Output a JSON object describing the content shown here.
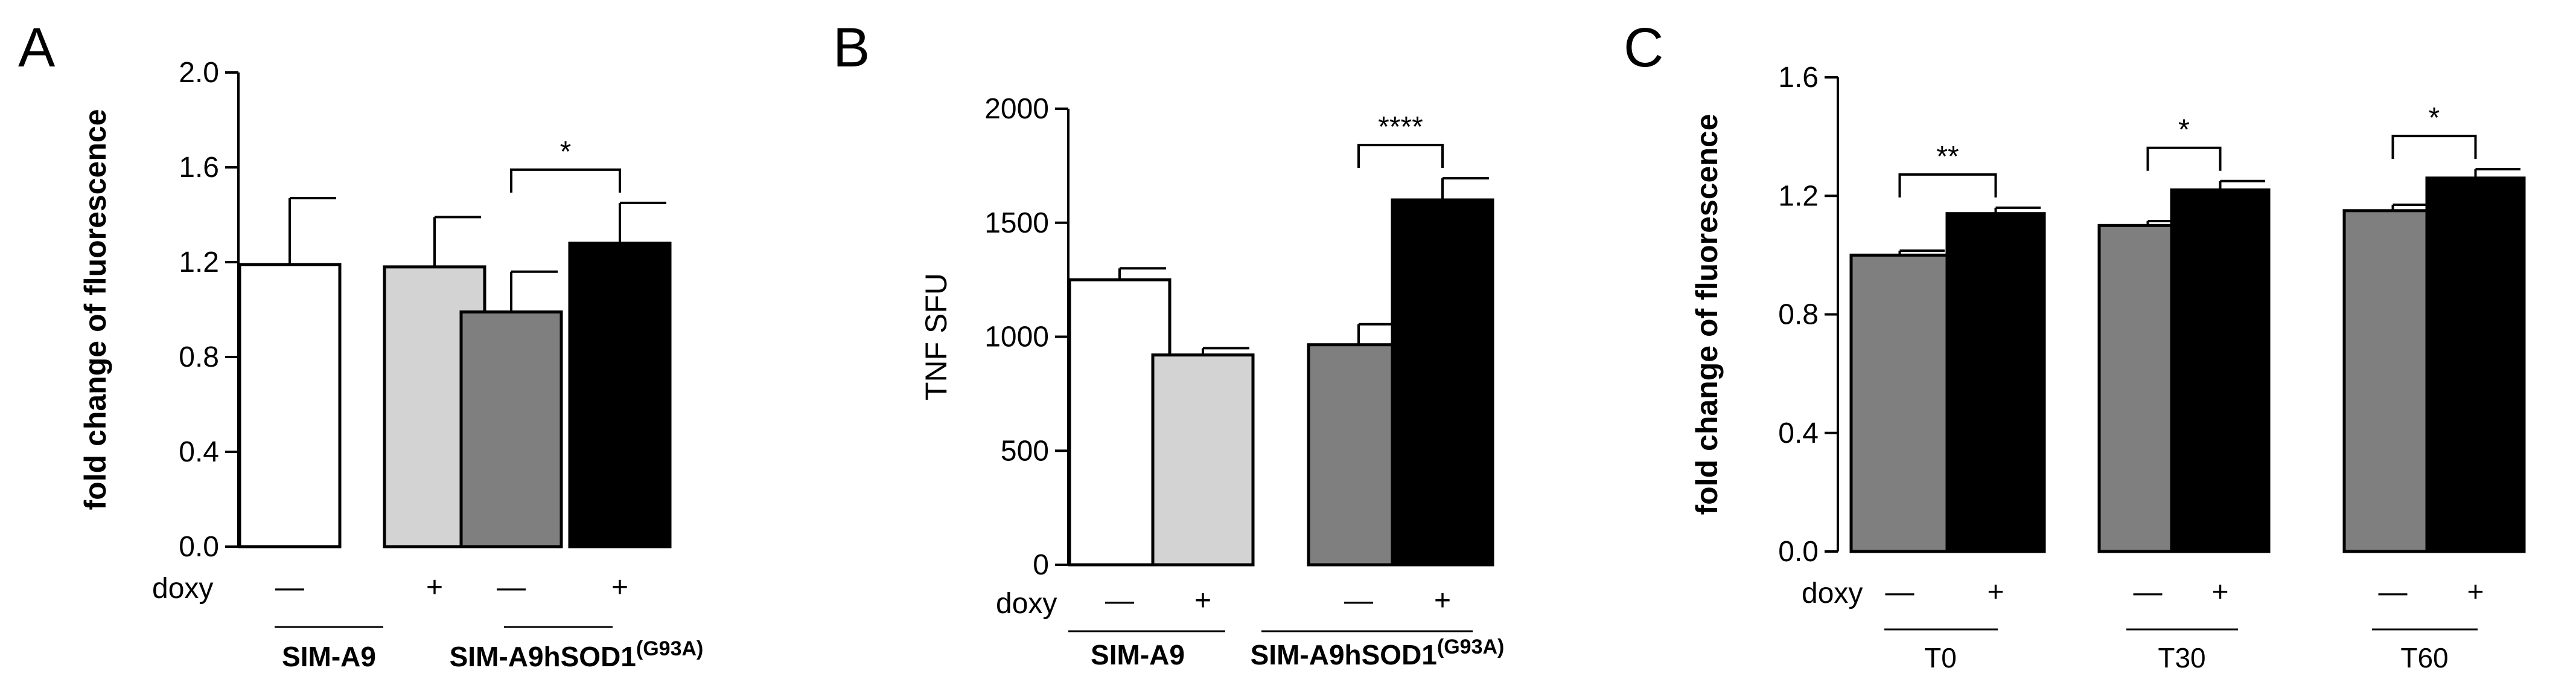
{
  "chart_data": [
    {
      "type": "bar",
      "panel": "A",
      "ylabel": "fold change of fluorescence",
      "ylim": [
        0,
        2.0
      ],
      "yticks": [
        "0.0",
        "0.4",
        "0.8",
        "1.2",
        "1.6",
        "2.0"
      ],
      "doxy_label": "doxy",
      "doxy": [
        "—",
        "+",
        "—",
        "+"
      ],
      "bars": [
        {
          "value": 1.19,
          "error": 0.28,
          "color": "#ffffff"
        },
        {
          "value": 1.18,
          "error": 0.21,
          "color": "#d3d3d3"
        },
        {
          "value": 0.99,
          "error": 0.17,
          "color": "#7f7f7f"
        },
        {
          "value": 1.28,
          "error": 0.17,
          "color": "#000000"
        }
      ],
      "groups": [
        {
          "label": "SIM-A9",
          "sup": "",
          "bars": [
            0,
            1
          ]
        },
        {
          "label": "SIM-A9hSOD1",
          "sup": "(G93A)",
          "bars": [
            2,
            3
          ]
        }
      ],
      "significance": [
        {
          "bars": [
            2,
            3
          ],
          "label": "*"
        }
      ]
    },
    {
      "type": "bar",
      "panel": "B",
      "ylabel": "TNF SFU",
      "ylim": [
        0,
        2000
      ],
      "yticks": [
        "0",
        "500",
        "1000",
        "1500",
        "2000"
      ],
      "doxy_label": "doxy",
      "doxy": [
        "—",
        "+",
        "—",
        "+"
      ],
      "bars": [
        {
          "value": 1250,
          "error": 50,
          "color": "#ffffff"
        },
        {
          "value": 920,
          "error": 30,
          "color": "#d3d3d3"
        },
        {
          "value": 965,
          "error": 90,
          "color": "#7f7f7f"
        },
        {
          "value": 1600,
          "error": 95,
          "color": "#000000"
        }
      ],
      "groups": [
        {
          "label": "SIM-A9",
          "sup": "",
          "bars": [
            0,
            1
          ]
        },
        {
          "label": "SIM-A9hSOD1",
          "sup": "(G93A)",
          "bars": [
            2,
            3
          ]
        }
      ],
      "significance": [
        {
          "bars": [
            2,
            3
          ],
          "label": "****"
        }
      ]
    },
    {
      "type": "bar",
      "panel": "C",
      "ylabel": "fold change of fluorescence",
      "ylim": [
        0,
        1.6
      ],
      "yticks": [
        "0.0",
        "0.4",
        "0.8",
        "1.2",
        "1.6"
      ],
      "doxy_label": "doxy",
      "doxy": [
        "—",
        "+",
        "—",
        "+",
        "—",
        "+"
      ],
      "bars": [
        {
          "value": 1.0,
          "error": 0.015,
          "color": "#7f7f7f"
        },
        {
          "value": 1.14,
          "error": 0.02,
          "color": "#000000"
        },
        {
          "value": 1.1,
          "error": 0.015,
          "color": "#7f7f7f"
        },
        {
          "value": 1.22,
          "error": 0.03,
          "color": "#000000"
        },
        {
          "value": 1.15,
          "error": 0.02,
          "color": "#7f7f7f"
        },
        {
          "value": 1.26,
          "error": 0.03,
          "color": "#000000"
        }
      ],
      "groups": [
        {
          "label": "T0",
          "sup": "",
          "bars": [
            0,
            1
          ]
        },
        {
          "label": "T30",
          "sup": "",
          "bars": [
            2,
            3
          ]
        },
        {
          "label": "T60",
          "sup": "",
          "bars": [
            4,
            5
          ]
        }
      ],
      "significance": [
        {
          "bars": [
            0,
            1
          ],
          "label": "**"
        },
        {
          "bars": [
            2,
            3
          ],
          "label": "*"
        },
        {
          "bars": [
            4,
            5
          ],
          "label": "*"
        }
      ]
    }
  ]
}
